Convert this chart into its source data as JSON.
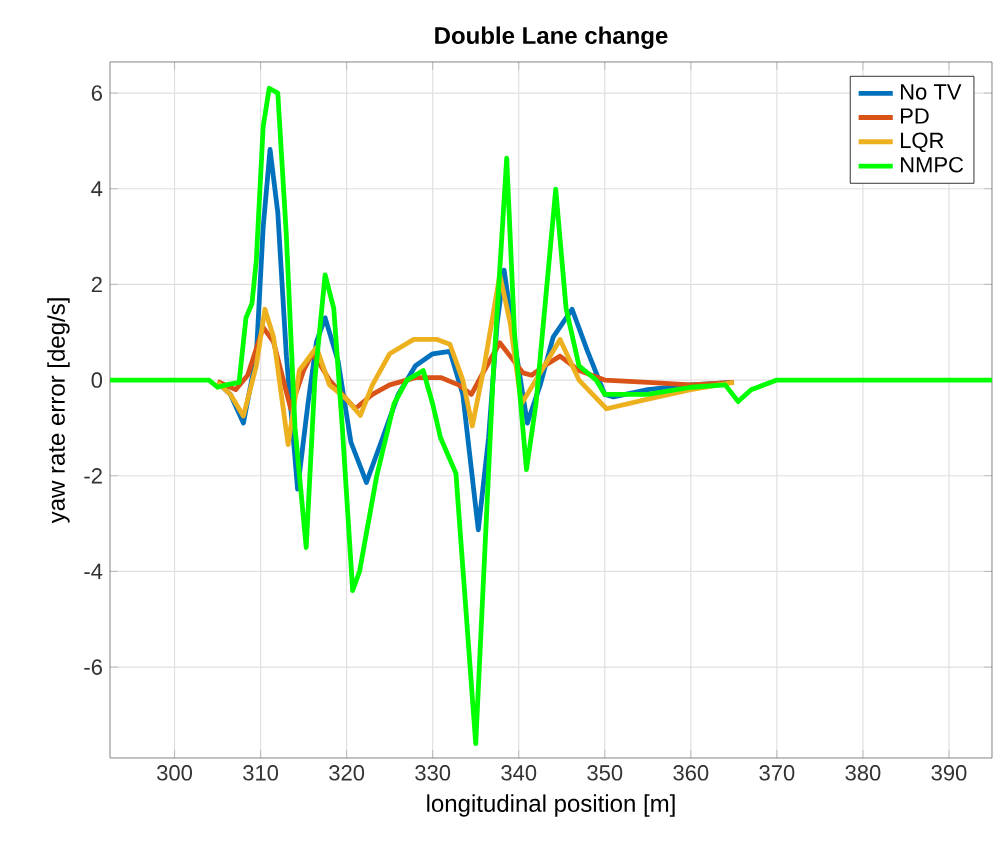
{
  "chart_data": {
    "type": "line",
    "title": "Double Lane change",
    "xlabel": "longitudinal position [m]",
    "ylabel": "yaw rate error [deg/s]",
    "xlim": [
      292.5,
      395
    ],
    "ylim": [
      -7.9,
      6.65
    ],
    "xticks": [
      300,
      310,
      320,
      330,
      340,
      350,
      360,
      370,
      380,
      390
    ],
    "yticks": [
      -6,
      -4,
      -2,
      0,
      2,
      4,
      6
    ],
    "grid": true,
    "legend": "top right",
    "marker": "none",
    "line_style": "solid",
    "series": [
      {
        "name": "No TV",
        "color": "#0072bd",
        "x": [
          305,
          306.5,
          308,
          309.5,
          310.3,
          311.1,
          312,
          313,
          314.3,
          315.5,
          316.5,
          317.5,
          319,
          320.5,
          322.3,
          324,
          326,
          328,
          330,
          332,
          333.5,
          335.3,
          336.5,
          337.5,
          338.3,
          339.5,
          341,
          342.5,
          344,
          346.2,
          348,
          350,
          351,
          355,
          360,
          365
        ],
        "values": [
          -0.05,
          -0.3,
          -0.9,
          0.5,
          3.2,
          4.82,
          3.5,
          0.5,
          -2.28,
          -0.5,
          0.8,
          1.3,
          0.4,
          -1.3,
          -2.14,
          -1.3,
          -0.3,
          0.3,
          0.55,
          0.6,
          -0.3,
          -3.13,
          -1.2,
          1.2,
          2.3,
          0.8,
          -0.9,
          -0.1,
          0.9,
          1.48,
          0.6,
          -0.3,
          -0.35,
          -0.2,
          -0.1,
          -0.05
        ]
      },
      {
        "name": "PD",
        "color": "#d95319",
        "x": [
          305,
          307.1,
          308.5,
          310.3,
          311.5,
          313.5,
          315,
          316,
          317,
          318,
          319.5,
          321,
          323,
          325,
          328,
          331,
          333,
          334.5,
          336,
          337.8,
          339,
          340.5,
          341.5,
          343,
          344.8,
          347,
          350,
          355,
          360,
          365
        ],
        "values": [
          -0.03,
          -0.2,
          0.1,
          1.1,
          0.8,
          -0.6,
          0.2,
          0.55,
          0.3,
          0,
          -0.3,
          -0.6,
          -0.3,
          -0.1,
          0.05,
          0.05,
          -0.1,
          -0.3,
          0.2,
          0.78,
          0.5,
          0.15,
          0.1,
          0.3,
          0.5,
          0.2,
          0,
          -0.05,
          -0.1,
          -0.05
        ]
      },
      {
        "name": "LQR",
        "color": "#edb120",
        "x": [
          305,
          306.5,
          308,
          309.5,
          310.5,
          311.5,
          313.2,
          314.5,
          316.5,
          318,
          320,
          321.6,
          323,
          325,
          327.8,
          330.5,
          332,
          333.5,
          334.6,
          336,
          337.8,
          339,
          340.3,
          342,
          344.8,
          347,
          350.2,
          355,
          360,
          365
        ],
        "values": [
          -0.05,
          -0.3,
          -0.75,
          0.3,
          1.48,
          0.9,
          -1.35,
          0.2,
          0.68,
          -0.1,
          -0.4,
          -0.74,
          -0.1,
          0.55,
          0.85,
          0.85,
          0.75,
          0,
          -0.96,
          0.3,
          2.2,
          1.2,
          -0.5,
          0,
          0.85,
          0,
          -0.6,
          -0.4,
          -0.2,
          -0.05
        ]
      },
      {
        "name": "NMPC",
        "color": "#00ff00",
        "x": [
          292.5,
          300,
          304,
          305,
          306,
          307.5,
          308.3,
          309,
          309.5,
          310.3,
          311,
          312,
          313,
          314,
          315.3,
          316.3,
          317.5,
          318.5,
          319.5,
          320.7,
          321.5,
          323.5,
          325.5,
          327,
          328.9,
          330,
          330.9,
          332.7,
          335,
          337,
          338.6,
          339.5,
          340.9,
          342,
          344.3,
          345.5,
          347,
          349,
          350,
          355,
          360,
          364,
          365.5,
          367,
          370,
          380,
          395
        ],
        "values": [
          0,
          0,
          0,
          -0.15,
          -0.1,
          -0.05,
          1.3,
          1.6,
          2.5,
          5.3,
          6.1,
          6.0,
          3,
          -1,
          -3.5,
          0,
          2.2,
          1.5,
          -1,
          -4.4,
          -4,
          -2,
          -0.5,
          0,
          0.2,
          -0.5,
          -1.2,
          -1.95,
          -7.6,
          0,
          4.64,
          1,
          -1.87,
          -0.5,
          3.99,
          1.5,
          0.3,
          0,
          -0.3,
          -0.3,
          -0.15,
          -0.1,
          -0.45,
          -0.2,
          0,
          0,
          0
        ]
      }
    ]
  }
}
